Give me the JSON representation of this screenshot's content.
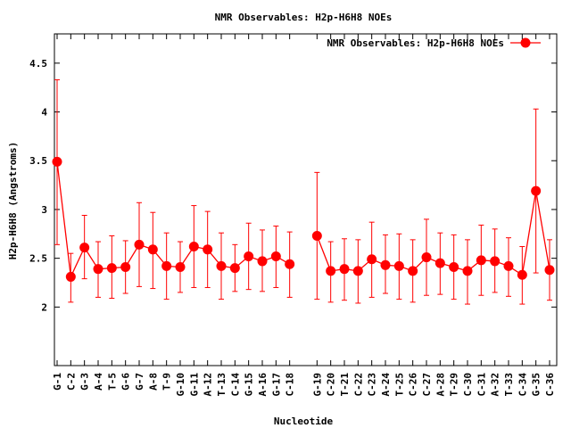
{
  "chart_data": {
    "type": "line",
    "title": "NMR Observables: H2p-H6H8 NOEs",
    "xlabel": "Nucleotide",
    "ylabel": "H2p-H6H8 (Angstroms)",
    "ylim": [
      1.4,
      4.8
    ],
    "yticks": [
      "2",
      "2.5",
      "3",
      "3.5",
      "4",
      "4.5"
    ],
    "grid": false,
    "legend_position": "top-right",
    "series": [
      {
        "name": "NMR Observables: H2p-H6H8 NOEs",
        "color": "#ff0000",
        "points": [
          {
            "x": "G-1",
            "y": 3.49,
            "low": 2.64,
            "high": 4.33
          },
          {
            "x": "C-2",
            "y": 2.31,
            "low": 2.05,
            "high": 2.55
          },
          {
            "x": "G-3",
            "y": 2.61,
            "low": 2.29,
            "high": 2.94
          },
          {
            "x": "A-4",
            "y": 2.39,
            "low": 2.1,
            "high": 2.67
          },
          {
            "x": "T-5",
            "y": 2.4,
            "low": 2.09,
            "high": 2.73
          },
          {
            "x": "G-6",
            "y": 2.41,
            "low": 2.14,
            "high": 2.68
          },
          {
            "x": "G-7",
            "y": 2.64,
            "low": 2.21,
            "high": 3.07
          },
          {
            "x": "A-8",
            "y": 2.59,
            "low": 2.19,
            "high": 2.97
          },
          {
            "x": "T-9",
            "y": 2.42,
            "low": 2.08,
            "high": 2.76
          },
          {
            "x": "G-10",
            "y": 2.41,
            "low": 2.15,
            "high": 2.67
          },
          {
            "x": "G-11",
            "y": 2.62,
            "low": 2.2,
            "high": 3.04
          },
          {
            "x": "A-12",
            "y": 2.59,
            "low": 2.2,
            "high": 2.98
          },
          {
            "x": "T-13",
            "y": 2.42,
            "low": 2.08,
            "high": 2.76
          },
          {
            "x": "C-14",
            "y": 2.4,
            "low": 2.16,
            "high": 2.64
          },
          {
            "x": "G-15",
            "y": 2.52,
            "low": 2.18,
            "high": 2.86
          },
          {
            "x": "A-16",
            "y": 2.47,
            "low": 2.16,
            "high": 2.79
          },
          {
            "x": "G-17",
            "y": 2.52,
            "low": 2.2,
            "high": 2.83
          },
          {
            "x": "C-18",
            "y": 2.44,
            "low": 2.1,
            "high": 2.77
          },
          {
            "x": "G-19",
            "y": 2.73,
            "low": 2.08,
            "high": 3.38
          },
          {
            "x": "C-20",
            "y": 2.37,
            "low": 2.05,
            "high": 2.67
          },
          {
            "x": "T-21",
            "y": 2.39,
            "low": 2.07,
            "high": 2.7
          },
          {
            "x": "C-22",
            "y": 2.37,
            "low": 2.04,
            "high": 2.69
          },
          {
            "x": "C-23",
            "y": 2.49,
            "low": 2.1,
            "high": 2.87
          },
          {
            "x": "A-24",
            "y": 2.43,
            "low": 2.14,
            "high": 2.74
          },
          {
            "x": "T-25",
            "y": 2.42,
            "low": 2.08,
            "high": 2.75
          },
          {
            "x": "C-26",
            "y": 2.37,
            "low": 2.05,
            "high": 2.69
          },
          {
            "x": "C-27",
            "y": 2.51,
            "low": 2.12,
            "high": 2.9
          },
          {
            "x": "A-28",
            "y": 2.45,
            "low": 2.13,
            "high": 2.76
          },
          {
            "x": "T-29",
            "y": 2.41,
            "low": 2.08,
            "high": 2.74
          },
          {
            "x": "C-30",
            "y": 2.37,
            "low": 2.03,
            "high": 2.69
          },
          {
            "x": "C-31",
            "y": 2.48,
            "low": 2.12,
            "high": 2.84
          },
          {
            "x": "A-32",
            "y": 2.47,
            "low": 2.15,
            "high": 2.8
          },
          {
            "x": "T-33",
            "y": 2.42,
            "low": 2.11,
            "high": 2.71
          },
          {
            "x": "C-34",
            "y": 2.33,
            "low": 2.03,
            "high": 2.62
          },
          {
            "x": "G-35",
            "y": 3.19,
            "low": 2.35,
            "high": 4.03
          },
          {
            "x": "C-36",
            "y": 2.38,
            "low": 2.07,
            "high": 2.69
          }
        ]
      }
    ]
  }
}
